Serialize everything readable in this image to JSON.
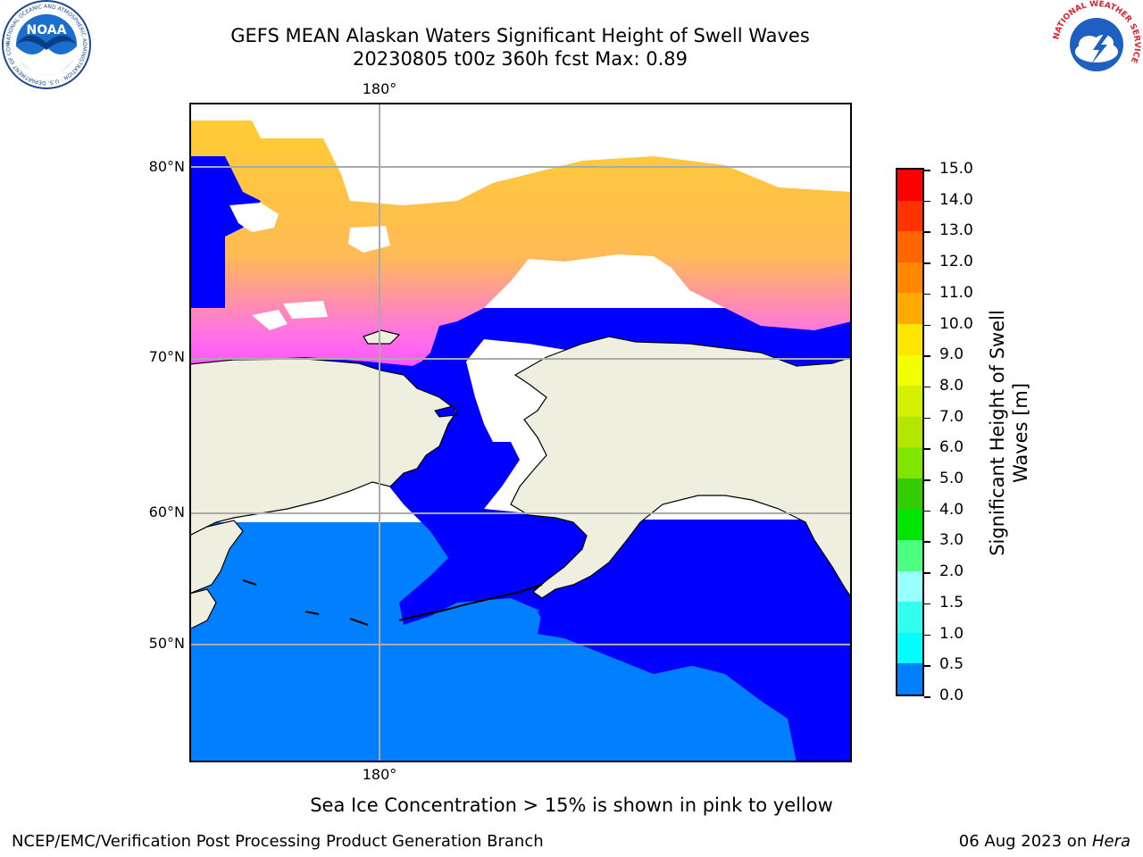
{
  "title": {
    "line1": "GEFS MEAN Alaskan Waters Significant Height of Swell Waves",
    "line2": "20230805 t00z 360h fcst   Max: 0.89"
  },
  "map": {
    "lon_label_top": "180°",
    "lon_label_bottom": "180°",
    "lat_labels": [
      "80°N",
      "70°N",
      "60°N",
      "50°N"
    ],
    "colors": {
      "land": "#efefe0",
      "ocean_low": "#0000ff",
      "ocean_mid": "#0080ff",
      "ice_pink": "#ff66ff",
      "ice_yellow": "#ffcc33",
      "grid": "#aaaaaa"
    }
  },
  "colorbar": {
    "label_line1": "Significant Height of Swell",
    "label_line2": "Waves [m]",
    "ticks": [
      "15.0",
      "14.0",
      "13.0",
      "12.0",
      "11.0",
      "10.0",
      "9.0",
      "8.0",
      "7.0",
      "6.0",
      "5.0",
      "4.0",
      "3.0",
      "2.0",
      "1.5",
      "1.0",
      "0.5",
      "0.0"
    ],
    "colors": [
      "#ff0000",
      "#ff3300",
      "#ff6600",
      "#ff8800",
      "#ffaa00",
      "#ffe600",
      "#f2ff00",
      "#d4f200",
      "#b3e600",
      "#80e600",
      "#33cc00",
      "#00e600",
      "#4dff80",
      "#99ffff",
      "#33ffee",
      "#00ffff",
      "#0080ff",
      "#0000ff"
    ]
  },
  "caption": "Sea Ice Concentration > 15% is shown in pink to yellow",
  "footer": {
    "left": "NCEP/EMC/Verification Post Processing Product Generation Branch",
    "right_date": "06 Aug 2023 on ",
    "right_host": "Hera"
  },
  "logos": {
    "noaa_text": "NOAA",
    "noaa_ring": "NATIONAL OCEANIC AND ATMOSPHERIC ADMINISTRATION · U.S. DEPARTMENT OF COMMERCE",
    "nws_ring": "NATIONAL WEATHER SERVICE"
  }
}
